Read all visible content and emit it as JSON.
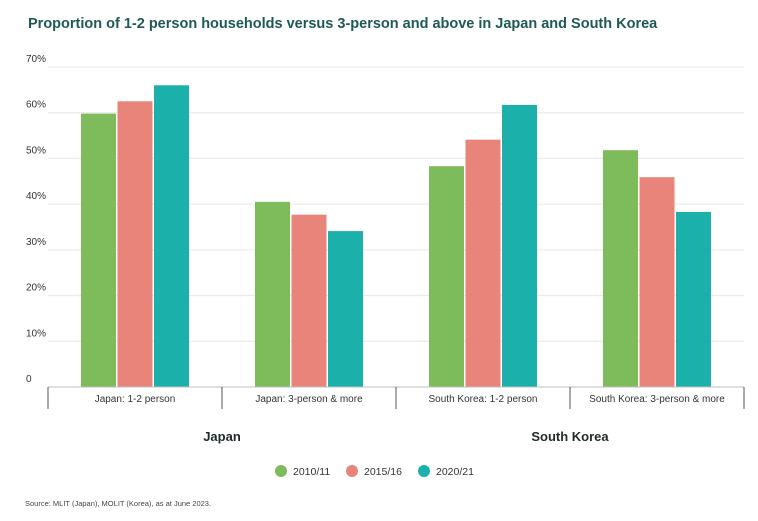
{
  "chart_data": {
    "type": "bar",
    "title": "Proportion of 1-2 person households versus 3-person and above in Japan and South Korea",
    "categories": [
      "Japan: 1-2 person",
      "Japan: 3-person & more",
      "South Korea: 1-2 person",
      "South Korea: 3-person & more"
    ],
    "groups": [
      "Japan",
      "South Korea"
    ],
    "series": [
      {
        "name": "2010/11",
        "color": "#7dbb5b",
        "values": [
          59.8,
          40.5,
          48.3,
          51.8
        ]
      },
      {
        "name": "2015/16",
        "color": "#e8847a",
        "values": [
          62.5,
          37.7,
          54.1,
          45.9
        ]
      },
      {
        "name": "2020/21",
        "color": "#1bb0a9",
        "values": [
          66.0,
          34.1,
          61.7,
          38.3
        ]
      }
    ],
    "y_ticks": [
      "0",
      "10%",
      "20%",
      "30%",
      "40%",
      "50%",
      "60%",
      "70%"
    ],
    "ylim": [
      0,
      70
    ],
    "grid": true,
    "legend_position": "bottom-center",
    "source": "Source: MLIT (Japan), MOLIT (Korea), as at June 2023."
  }
}
